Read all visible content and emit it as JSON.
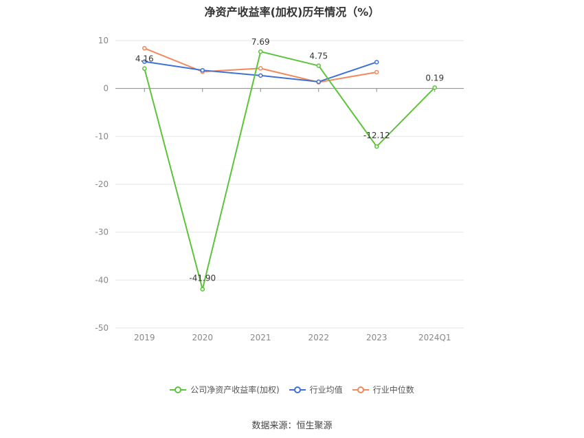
{
  "chart_data": {
    "type": "line",
    "title": "净资产收益率(加权)历年情况（%）",
    "categories": [
      "2019",
      "2020",
      "2021",
      "2022",
      "2023",
      "2024Q1"
    ],
    "ylim": [
      -50,
      10
    ],
    "yticks": [
      10,
      0,
      -10,
      -20,
      -30,
      -40,
      -50
    ],
    "grid": true,
    "legend_position": "bottom",
    "series": [
      {
        "name": "公司净资产收益率(加权)",
        "color": "#5ac33a",
        "values": [
          4.16,
          -41.9,
          7.69,
          4.75,
          -12.12,
          0.19
        ],
        "labels": [
          "4.16",
          "-41.90",
          "7.69",
          "4.75",
          "-12.12",
          "0.19"
        ]
      },
      {
        "name": "行业均值",
        "color": "#3e6fd8",
        "values": [
          5.6,
          3.8,
          2.7,
          1.4,
          5.5,
          null
        ]
      },
      {
        "name": "行业中位数",
        "color": "#f08a5d",
        "values": [
          8.4,
          3.5,
          4.2,
          1.3,
          3.4,
          null
        ]
      }
    ]
  },
  "footer": {
    "source": "数据来源：恒生聚源"
  }
}
